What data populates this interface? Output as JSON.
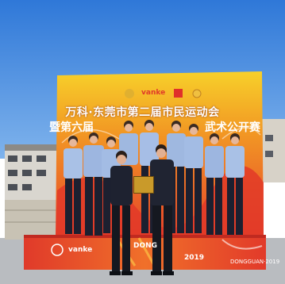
{
  "banner": {
    "title_line1": "万科·东莞市第二届市民运动会",
    "title_line2_left": "暨第六届",
    "title_line2_right": "武术公开赛",
    "brand_top": "vanke",
    "brand_bottom_left": "vanke",
    "brand_bottom_mid": "DONG",
    "brand_bottom_mid_year": "2019",
    "brand_bottom_right": "DONGGUAN·2019"
  },
  "colors": {
    "sky": "#4a8fe0",
    "banner_yellow": "#f5c321",
    "banner_red": "#e8472b",
    "uniform_blue": "#9fb8e0",
    "trousers": "#1c2030"
  }
}
